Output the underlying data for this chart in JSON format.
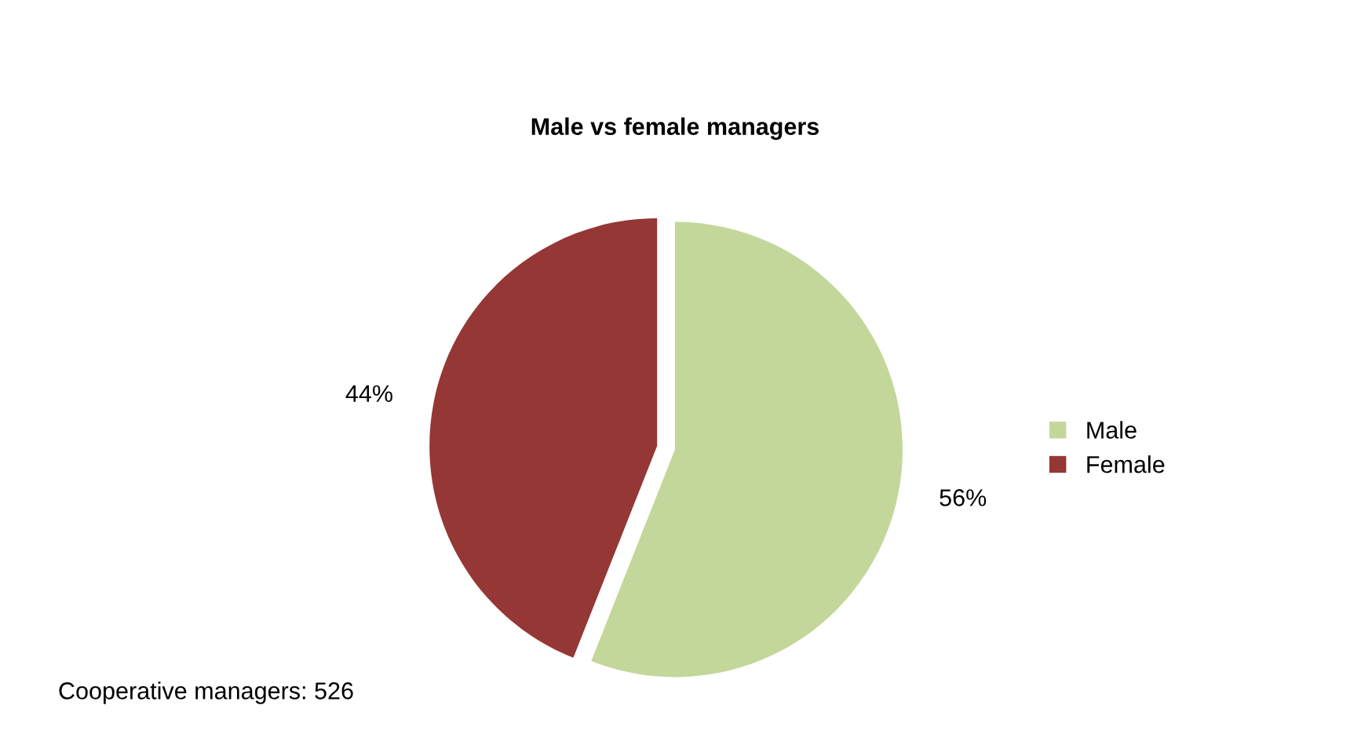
{
  "chart_data": {
    "type": "pie",
    "title": "Male vs female managers",
    "categories": [
      "Male",
      "Female"
    ],
    "values": [
      56,
      44
    ],
    "value_labels": [
      "56%",
      "44%"
    ],
    "colors": [
      "#c4d79b",
      "#953735"
    ],
    "legend": "right",
    "annotations": [
      "Cooperative managers: 526"
    ]
  }
}
